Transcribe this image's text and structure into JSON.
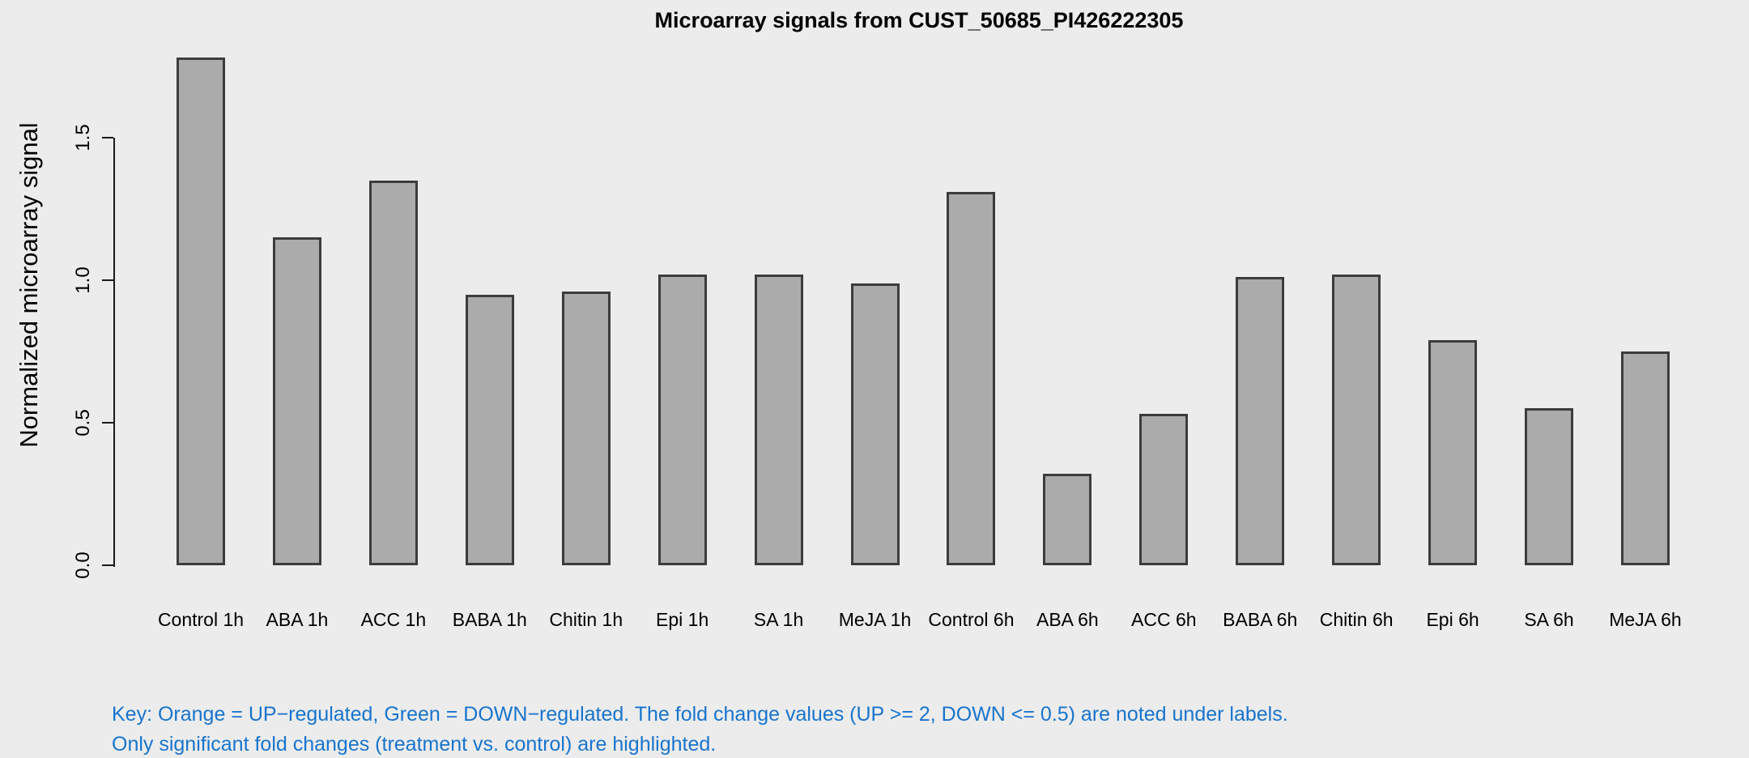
{
  "chart_data": {
    "type": "bar",
    "title": "Microarray signals from CUST_50685_PI426222305",
    "xlabel": "",
    "ylabel": "Normalized microarray signal",
    "categories": [
      "Control 1h",
      "ABA 1h",
      "ACC 1h",
      "BABA 1h",
      "Chitin 1h",
      "Epi 1h",
      "SA 1h",
      "MeJA 1h",
      "Control 6h",
      "ABA 6h",
      "ACC 6h",
      "BABA 6h",
      "Chitin 6h",
      "Epi 6h",
      "SA 6h",
      "MeJA 6h"
    ],
    "values": [
      1.78,
      1.15,
      1.35,
      0.95,
      0.96,
      1.02,
      1.02,
      0.99,
      1.31,
      0.32,
      0.53,
      1.01,
      1.02,
      0.79,
      0.55,
      0.75
    ],
    "ylim": [
      0,
      1.78
    ],
    "yticks": [
      0,
      0.5,
      1.0,
      1.5
    ],
    "ytick_labels": [
      "0.0",
      "0.5",
      "1.0",
      "1.5"
    ],
    "grid": false,
    "legend_position": "none"
  },
  "key": {
    "line1": "Key: Orange = UP−regulated, Green = DOWN−regulated. The fold change values (UP >= 2, DOWN <= 0.5) are noted under labels.",
    "line2": "Only significant fold changes (treatment vs. control) are highlighted."
  },
  "colors": {
    "background": "#ECECEC",
    "bar_fill": "#ABABAB",
    "bar_border": "#3C3C3C",
    "axis": "#1A1A1A",
    "text": "#000000",
    "key_text": "#1874CD"
  }
}
